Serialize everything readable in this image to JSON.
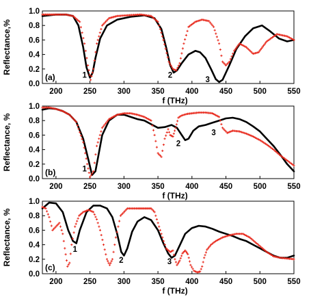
{
  "figure": {
    "colors": {
      "black_series": "#000000",
      "red_series": "#e8291c"
    }
  },
  "chart_data": [
    {
      "type": "line",
      "panel_label": "(a)",
      "xlabel": "f (THz)",
      "ylabel": "Reflectance,%",
      "xlim": [
        180,
        550
      ],
      "ylim": [
        0,
        1.0
      ],
      "xticks": [
        200,
        250,
        300,
        350,
        400,
        450,
        500,
        550
      ],
      "yticks": [
        "0.0",
        "0.2",
        "0.4",
        "0.6",
        "0.8",
        "1.0"
      ],
      "series": [
        {
          "color": "#000000",
          "style": "solid",
          "x": [
            180,
            200,
            215,
            225,
            233,
            240,
            245,
            250,
            254,
            258,
            265,
            275,
            290,
            310,
            330,
            345,
            355,
            362,
            368,
            373,
            378,
            385,
            395,
            405,
            412,
            420,
            428,
            435,
            440,
            445,
            455,
            465,
            478,
            490,
            503,
            515,
            528,
            540,
            550
          ],
          "y": [
            0.93,
            0.95,
            0.95,
            0.93,
            0.8,
            0.5,
            0.22,
            0.08,
            0.15,
            0.35,
            0.62,
            0.8,
            0.88,
            0.92,
            0.94,
            0.9,
            0.75,
            0.5,
            0.25,
            0.15,
            0.18,
            0.28,
            0.4,
            0.45,
            0.43,
            0.35,
            0.2,
            0.06,
            0.02,
            0.05,
            0.25,
            0.47,
            0.65,
            0.76,
            0.8,
            0.72,
            0.62,
            0.58,
            0.6
          ]
        },
        {
          "color": "#e8291c",
          "style": "markers",
          "x": [
            180,
            200,
            215,
            225,
            235,
            242,
            247,
            251,
            255,
            260,
            268,
            278,
            290,
            305,
            325,
            340,
            350,
            358,
            366,
            372,
            377,
            382,
            388,
            395,
            405,
            415,
            425,
            432,
            440,
            445,
            450,
            455,
            462,
            470,
            480,
            490,
            498,
            510,
            525,
            540,
            550
          ],
          "y": [
            0.95,
            0.95,
            0.95,
            0.93,
            0.85,
            0.55,
            0.25,
            0.05,
            0.2,
            0.55,
            0.8,
            0.9,
            0.93,
            0.94,
            0.95,
            0.93,
            0.85,
            0.6,
            0.3,
            0.2,
            0.18,
            0.28,
            0.55,
            0.78,
            0.85,
            0.88,
            0.86,
            0.78,
            0.55,
            0.3,
            0.25,
            0.3,
            0.45,
            0.55,
            0.5,
            0.41,
            0.43,
            0.58,
            0.68,
            0.65,
            0.6
          ]
        }
      ],
      "annotations": [
        {
          "text": "1",
          "x": 242,
          "y": 0.08
        },
        {
          "text": "2",
          "x": 368,
          "y": 0.08
        },
        {
          "text": "3",
          "x": 423,
          "y": 0.02
        }
      ]
    },
    {
      "type": "line",
      "panel_label": "(b)",
      "xlabel": "f (THz)",
      "ylabel": "Reflectance, %",
      "xlim": [
        180,
        550
      ],
      "ylim": [
        0,
        1.0
      ],
      "xticks": [
        200,
        250,
        300,
        350,
        400,
        450,
        500,
        550
      ],
      "yticks": [
        "0.0",
        "0.2",
        "0.4",
        "0.6",
        "0.8",
        "1.0"
      ],
      "series": [
        {
          "color": "#000000",
          "style": "solid",
          "x": [
            180,
            190,
            200,
            210,
            220,
            230,
            240,
            248,
            253,
            258,
            262,
            268,
            278,
            290,
            300,
            310,
            320,
            330,
            340,
            350,
            360,
            370,
            378,
            385,
            390,
            395,
            402,
            410,
            420,
            430,
            440,
            450,
            460,
            470,
            480,
            490,
            500,
            510,
            520,
            530,
            540,
            550
          ],
          "y": [
            0.95,
            0.97,
            0.96,
            0.93,
            0.88,
            0.78,
            0.55,
            0.25,
            0.05,
            0.1,
            0.3,
            0.6,
            0.8,
            0.88,
            0.88,
            0.85,
            0.82,
            0.8,
            0.75,
            0.7,
            0.71,
            0.74,
            0.7,
            0.6,
            0.53,
            0.55,
            0.66,
            0.72,
            0.74,
            0.77,
            0.8,
            0.83,
            0.84,
            0.82,
            0.78,
            0.72,
            0.65,
            0.55,
            0.45,
            0.33,
            0.2,
            0.1
          ]
        },
        {
          "color": "#e8291c",
          "style": "markers",
          "x": [
            180,
            190,
            200,
            210,
            220,
            230,
            240,
            246,
            250,
            255,
            260,
            268,
            278,
            290,
            300,
            310,
            320,
            330,
            340,
            345,
            350,
            355,
            360,
            365,
            368,
            372,
            376,
            380,
            385,
            392,
            400,
            410,
            420,
            430,
            440,
            445,
            452,
            460,
            470,
            480,
            490,
            500,
            510,
            520,
            530,
            540,
            550
          ],
          "y": [
            0.98,
            0.98,
            0.96,
            0.93,
            0.88,
            0.78,
            0.5,
            0.2,
            0.02,
            0.1,
            0.45,
            0.7,
            0.82,
            0.88,
            0.9,
            0.9,
            0.88,
            0.85,
            0.8,
            0.6,
            0.35,
            0.3,
            0.55,
            0.68,
            0.6,
            0.58,
            0.7,
            0.84,
            0.87,
            0.89,
            0.9,
            0.91,
            0.91,
            0.9,
            0.85,
            0.7,
            0.63,
            0.66,
            0.65,
            0.62,
            0.58,
            0.53,
            0.47,
            0.4,
            0.32,
            0.25,
            0.18
          ]
        }
      ],
      "annotations": [
        {
          "text": "1",
          "x": 242,
          "y": 0.1
        },
        {
          "text": "2",
          "x": 380,
          "y": 0.45
        },
        {
          "text": "3",
          "x": 432,
          "y": 0.6
        }
      ]
    },
    {
      "type": "line",
      "panel_label": "(c)",
      "xlabel": "f (THz)",
      "ylabel": "Reflectance, %",
      "xlim": [
        180,
        550
      ],
      "ylim": [
        0,
        1.0
      ],
      "xticks": [
        200,
        250,
        300,
        350,
        400,
        450,
        500,
        550
      ],
      "yticks": [
        "0.0",
        "0.2",
        "0.4",
        "0.6",
        "0.8",
        "1.0"
      ],
      "series": [
        {
          "color": "#000000",
          "style": "solid",
          "x": [
            180,
            190,
            200,
            210,
            218,
            225,
            230,
            235,
            245,
            255,
            265,
            275,
            283,
            290,
            296,
            300,
            305,
            312,
            320,
            330,
            340,
            350,
            358,
            365,
            370,
            375,
            380,
            390,
            400,
            410,
            420,
            430,
            440,
            450,
            460,
            470,
            480,
            490,
            500,
            510,
            520,
            530,
            540,
            550
          ],
          "y": [
            0.9,
            0.98,
            0.97,
            0.85,
            0.6,
            0.45,
            0.42,
            0.6,
            0.85,
            0.94,
            0.94,
            0.9,
            0.78,
            0.55,
            0.3,
            0.25,
            0.35,
            0.58,
            0.72,
            0.78,
            0.74,
            0.6,
            0.42,
            0.28,
            0.22,
            0.25,
            0.35,
            0.55,
            0.63,
            0.66,
            0.65,
            0.62,
            0.58,
            0.55,
            0.52,
            0.48,
            0.45,
            0.4,
            0.35,
            0.3,
            0.25,
            0.22,
            0.22,
            0.25
          ]
        },
        {
          "color": "#e8291c",
          "style": "markers",
          "x": [
            180,
            185,
            190,
            195,
            200,
            205,
            210,
            213,
            217,
            220,
            223,
            228,
            234,
            240,
            248,
            255,
            260,
            265,
            270,
            275,
            279,
            283,
            288,
            295,
            305,
            320,
            340,
            345,
            350,
            355,
            362,
            368,
            372,
            375,
            378,
            382,
            386,
            390,
            394,
            398,
            403,
            408,
            412,
            415,
            418,
            422,
            428,
            435,
            445,
            455,
            465,
            475,
            485,
            495,
            510,
            520,
            530,
            540,
            550
          ],
          "y": [
            0.92,
            0.9,
            0.78,
            0.6,
            0.65,
            0.7,
            0.55,
            0.35,
            0.1,
            0.15,
            0.4,
            0.65,
            0.8,
            0.85,
            0.88,
            0.85,
            0.75,
            0.6,
            0.4,
            0.2,
            0.12,
            0.2,
            0.5,
            0.8,
            0.9,
            0.9,
            0.9,
            0.85,
            0.7,
            0.55,
            0.35,
            0.3,
            0.32,
            0.2,
            0.12,
            0.18,
            0.28,
            0.32,
            0.27,
            0.12,
            0.04,
            0.02,
            0.03,
            0.1,
            0.22,
            0.33,
            0.4,
            0.45,
            0.5,
            0.53,
            0.55,
            0.55,
            0.5,
            0.42,
            0.3,
            0.24,
            0.22,
            0.21,
            0.2
          ]
        }
      ],
      "annotations": [
        {
          "text": "1",
          "x": 228,
          "y": 0.3
        },
        {
          "text": "2",
          "x": 296,
          "y": 0.15
        },
        {
          "text": "3",
          "x": 367,
          "y": 0.13
        }
      ]
    }
  ]
}
